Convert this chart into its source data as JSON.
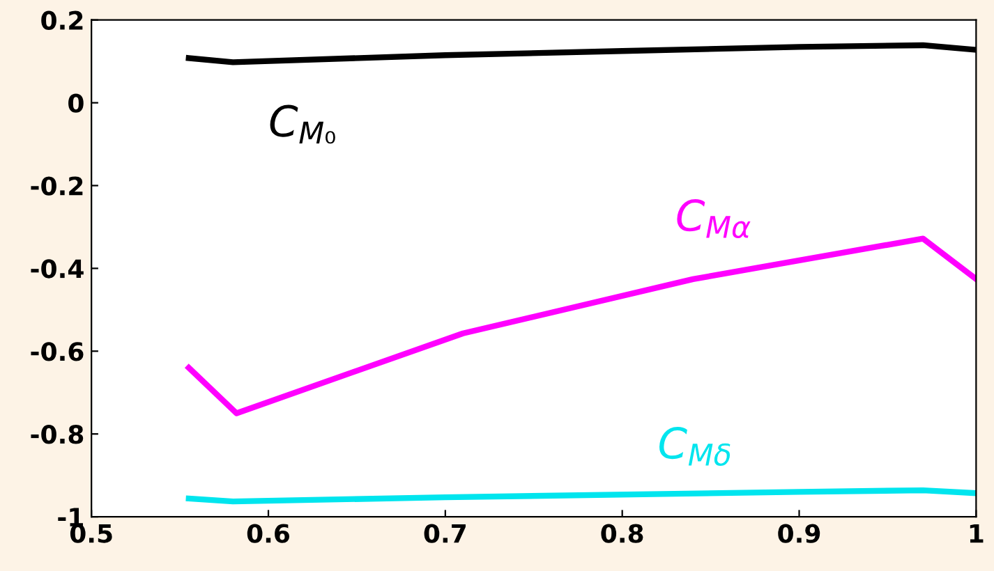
{
  "chart_data": {
    "type": "line",
    "series": [
      {
        "name": "C$_{M₀}$",
        "color": "#000000",
        "x": [
          0.555,
          0.58,
          0.7,
          0.8,
          0.9,
          0.97,
          1.0
        ],
        "values": [
          0.108,
          0.098,
          0.115,
          0.125,
          0.135,
          0.139,
          0.128
        ]
      },
      {
        "name": "C$_{Mα}$",
        "color": "#ff00ff",
        "x": [
          0.555,
          0.582,
          0.71,
          0.84,
          0.97,
          1.0
        ],
        "values": [
          -0.64,
          -0.75,
          -0.557,
          -0.426,
          -0.328,
          -0.426
        ]
      },
      {
        "name": "C$_{Mδ}$",
        "color": "#00e5ee",
        "x": [
          0.555,
          0.58,
          0.7,
          0.9,
          0.97,
          1.0
        ],
        "values": [
          -0.956,
          -0.963,
          -0.953,
          -0.94,
          -0.936,
          -0.943
        ]
      }
    ],
    "xlim": [
      0.5,
      1.0
    ],
    "xticks": [
      {
        "value": 0.5,
        "label": "0.5"
      },
      {
        "value": 0.6,
        "label": "0.6"
      },
      {
        "value": 0.7,
        "label": "0.7"
      },
      {
        "value": 0.8,
        "label": "0.8"
      },
      {
        "value": 0.9,
        "label": "0.9"
      },
      {
        "value": 1.0,
        "label": "1"
      }
    ],
    "ylim": [
      -1.0,
      0.2
    ],
    "yticks": [
      {
        "value": -1.0,
        "label": "-1"
      },
      {
        "value": -0.8,
        "label": "-0.8"
      },
      {
        "value": -0.6,
        "label": "-0.6"
      },
      {
        "value": -0.4,
        "label": "-0.4"
      },
      {
        "value": -0.2,
        "label": "-0.2"
      },
      {
        "value": 0,
        "label": "0"
      },
      {
        "value": 0.2,
        "label": "0.2"
      }
    ],
    "grid": false,
    "legend": false,
    "marker": "none",
    "line_style": "solid"
  }
}
